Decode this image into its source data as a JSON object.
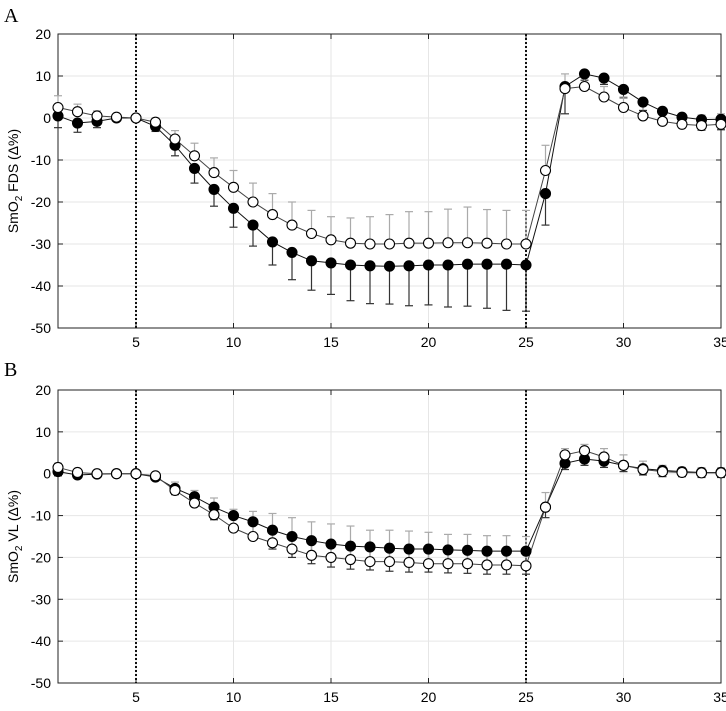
{
  "chart_data": [
    {
      "type": "line",
      "panel_label": "A",
      "ylabel": {
        "pre": "SmO",
        "sub": "2",
        "post": " FDS (Δ%)"
      },
      "xlim": [
        1,
        35
      ],
      "ylim": [
        -50,
        20
      ],
      "xticks": [
        5,
        10,
        15,
        20,
        25,
        30,
        35
      ],
      "yticks": [
        20,
        10,
        0,
        -10,
        -20,
        -30,
        -40,
        -50
      ],
      "grid": true,
      "vlines": [
        5,
        25
      ],
      "x": [
        1,
        2,
        3,
        4,
        5,
        6,
        7,
        8,
        9,
        10,
        11,
        12,
        13,
        14,
        15,
        16,
        17,
        18,
        19,
        20,
        21,
        22,
        23,
        24,
        25,
        26,
        27,
        28,
        29,
        30,
        31,
        32,
        33,
        34,
        35
      ],
      "series": [
        {
          "marker": "filled",
          "errorbar_color": "#333333",
          "values": [
            0.5,
            -1.2,
            -0.8,
            0,
            0,
            -2,
            -6.5,
            -12,
            -17,
            -21.5,
            -25.5,
            -29.5,
            -32,
            -34,
            -34.5,
            -35,
            -35.2,
            -35.3,
            -35.2,
            -35,
            -35,
            -34.8,
            -34.8,
            -34.8,
            -35,
            -18,
            7.5,
            10.5,
            9.5,
            6.8,
            3.8,
            1.6,
            0.2,
            -0.4,
            -0.3
          ],
          "err": [
            2.8,
            2.2,
            1.5,
            0.6,
            0,
            1.2,
            2.5,
            3.5,
            4,
            4.5,
            5,
            5.5,
            6.5,
            7,
            7.5,
            8.5,
            9,
            9,
            9.5,
            9.5,
            10,
            10,
            10.5,
            11,
            11,
            7.5,
            6.5,
            1.5,
            1.5,
            2,
            2,
            2.2,
            2.5,
            2.5,
            2.5
          ]
        },
        {
          "marker": "open",
          "errorbar_color": "#aaaaaa",
          "values": [
            2.5,
            1.5,
            0.5,
            0.2,
            0,
            -1,
            -5,
            -9,
            -13,
            -16.5,
            -20,
            -23,
            -25.5,
            -27.5,
            -29,
            -29.8,
            -30,
            -30,
            -29.8,
            -29.8,
            -29.7,
            -29.7,
            -29.8,
            -30,
            -30,
            -12.5,
            7,
            7.5,
            5,
            2.5,
            0.5,
            -0.8,
            -1.5,
            -1.8,
            -1.5
          ],
          "err": [
            2.8,
            1.8,
            1.2,
            0.5,
            0,
            1,
            2,
            3,
            3.5,
            4,
            4.5,
            5,
            5.5,
            5.5,
            5.5,
            6,
            6.5,
            7,
            7.5,
            7.5,
            8,
            8.5,
            8,
            8,
            8,
            6,
            3.5,
            2.5,
            2.5,
            2.5,
            2.5,
            2.5,
            2.5,
            2.5,
            2.5
          ]
        }
      ]
    },
    {
      "type": "line",
      "panel_label": "B",
      "ylabel": {
        "pre": "SmO",
        "sub": "2",
        "post": " VL (Δ%)"
      },
      "xlim": [
        1,
        35
      ],
      "ylim": [
        -50,
        20
      ],
      "xticks": [
        5,
        10,
        15,
        20,
        25,
        30,
        35
      ],
      "yticks": [
        20,
        10,
        0,
        -10,
        -20,
        -30,
        -40,
        -50
      ],
      "grid": true,
      "vlines": [
        5,
        25
      ],
      "x": [
        1,
        2,
        3,
        4,
        5,
        6,
        7,
        8,
        9,
        10,
        11,
        12,
        13,
        14,
        15,
        16,
        17,
        18,
        19,
        20,
        21,
        22,
        23,
        24,
        25,
        26,
        27,
        28,
        29,
        30,
        31,
        32,
        33,
        34,
        35
      ],
      "series": [
        {
          "marker": "filled",
          "errorbar_color": "#333333",
          "values": [
            0.5,
            -0.3,
            -0.1,
            0,
            0,
            -0.8,
            -3.5,
            -5.5,
            -8,
            -10,
            -11.5,
            -13.5,
            -15,
            -16,
            -16.8,
            -17.3,
            -17.5,
            -17.8,
            -18,
            -18,
            -18.2,
            -18.3,
            -18.5,
            -18.5,
            -18.5,
            -8,
            2.5,
            3.5,
            3,
            2,
            1.2,
            0.8,
            0.5,
            0.3,
            0.3
          ],
          "err": [
            1,
            0.8,
            0.5,
            0.3,
            0,
            0.5,
            1.5,
            2.2,
            3,
            3.5,
            4,
            4.5,
            5,
            5.5,
            5.5,
            5.5,
            5.5,
            5.5,
            5.5,
            5.5,
            5.5,
            5.5,
            5.5,
            5.5,
            5.5,
            2.5,
            1.5,
            1.5,
            1.5,
            1.5,
            1.5,
            1.5,
            1.2,
            1.2,
            1.2
          ]
        },
        {
          "marker": "open",
          "errorbar_color": "#aaaaaa",
          "values": [
            1.5,
            0.3,
            0,
            0,
            0,
            -0.5,
            -4,
            -7,
            -9.8,
            -13,
            -15,
            -16.5,
            -18,
            -19.5,
            -20,
            -20.5,
            -21,
            -21,
            -21.2,
            -21.5,
            -21.5,
            -21.5,
            -21.8,
            -21.8,
            -22,
            -8,
            4.5,
            5.5,
            4,
            2,
            1,
            0.5,
            0.3,
            0.2,
            0.2
          ],
          "err": [
            1,
            0.8,
            0.5,
            0.3,
            0,
            0.5,
            2,
            3,
            4,
            4.5,
            6,
            7,
            7.5,
            8,
            8,
            8,
            7.5,
            7.5,
            7.5,
            7.5,
            7,
            7,
            7,
            7,
            7,
            3.5,
            1.5,
            1.5,
            2,
            2.5,
            2,
            1.5,
            1.2,
            1.2,
            1.2
          ]
        }
      ]
    }
  ]
}
